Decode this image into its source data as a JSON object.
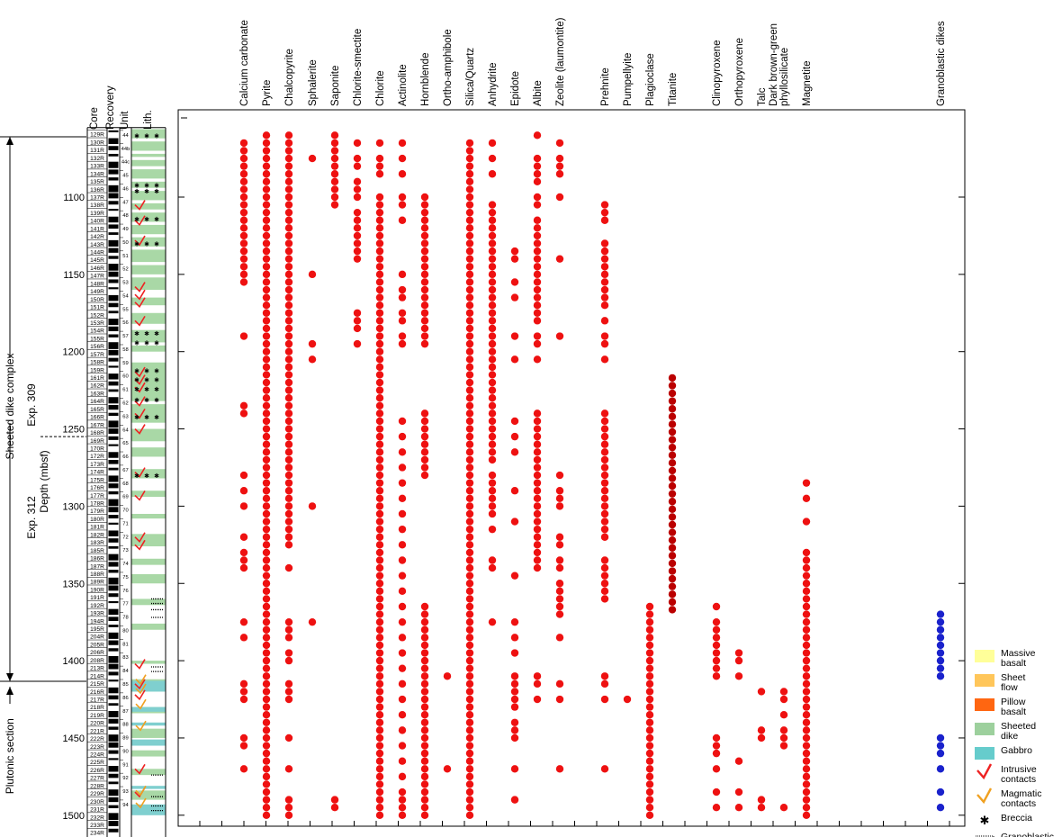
{
  "chart_data": {
    "type": "scatter",
    "ylabel": "Depth (mbsf)",
    "ylim": [
      1055,
      1502
    ],
    "yticks": [
      1100,
      1150,
      1200,
      1250,
      1300,
      1350,
      1400,
      1450,
      1500
    ],
    "column_headers": [
      "Core",
      "Recovery",
      "Unit",
      "Lith."
    ],
    "sections": [
      {
        "label": "Sheeted dike complex",
        "top": 1055,
        "bottom": 1410
      },
      {
        "label": "Plutonic section",
        "top": 1410,
        "bottom": 1502
      }
    ],
    "expeditions": [
      {
        "label": "Exp. 309",
        "top": 1055,
        "bottom": 1255
      },
      {
        "label": "Exp. 312",
        "top": 1255,
        "bottom": 1502
      }
    ],
    "expedition_boundary": 1255,
    "cores": [
      "129R",
      "130R",
      "131R",
      "132R",
      "133R",
      "134R",
      "135R",
      "136R",
      "137R",
      "138R",
      "139R",
      "140R",
      "141R",
      "142R",
      "143R",
      "144R",
      "145R",
      "146R",
      "147R",
      "148R",
      "149R",
      "150R",
      "151R",
      "152R",
      "153R",
      "154R",
      "155R",
      "156R",
      "157R",
      "158R",
      "159R",
      "161R",
      "162R",
      "163R",
      "164R",
      "165R",
      "166R",
      "167R",
      "168R",
      "169R",
      "170R",
      "172R",
      "173R",
      "174R",
      "175R",
      "176R",
      "177R",
      "178R",
      "179R",
      "180R",
      "181R",
      "182R",
      "183R",
      "185R",
      "186R",
      "187R",
      "188R",
      "189R",
      "190R",
      "191R",
      "192R",
      "193R",
      "194R",
      "195R",
      "204R",
      "205R",
      "206R",
      "208R",
      "213R",
      "214R",
      "215R",
      "216R",
      "217R",
      "218R",
      "219R",
      "220R",
      "221R",
      "222R",
      "223R",
      "224R",
      "225R",
      "226R",
      "227R",
      "228R",
      "229R",
      "230R",
      "231R",
      "232R",
      "233R",
      "234R"
    ],
    "units": [
      "44",
      "44b",
      "44c",
      "45",
      "46",
      "47",
      "48",
      "49",
      "50",
      "51",
      "52",
      "53",
      "54",
      "55",
      "56",
      "57",
      "58",
      "59",
      "60",
      "61",
      "62",
      "63",
      "64",
      "65",
      "66",
      "67",
      "68",
      "69",
      "70",
      "71",
      "72",
      "73",
      "74",
      "75",
      "76",
      "77",
      "78",
      "80",
      "81",
      "83",
      "84",
      "85",
      "86",
      "87",
      "88",
      "89",
      "90",
      "91",
      "92",
      "93",
      "94"
    ],
    "minerals": [
      {
        "name": "Calcium carbonate",
        "color": "#ee1111",
        "depths": [
          1065,
          1070,
          1075,
          1080,
          1085,
          1090,
          1095,
          1100,
          1105,
          1110,
          1115,
          1120,
          1125,
          1130,
          1135,
          1140,
          1145,
          1150,
          1155,
          1190,
          1235,
          1240,
          1280,
          1290,
          1300,
          1320,
          1330,
          1335,
          1340,
          1375,
          1385,
          1415,
          1420,
          1425,
          1450,
          1455,
          1470
        ]
      },
      {
        "name": "Pyrite",
        "color": "#ee1111",
        "depths": [
          1060,
          1065,
          1070,
          1075,
          1080,
          1085,
          1090,
          1095,
          1100,
          1105,
          1110,
          1115,
          1120,
          1125,
          1130,
          1135,
          1140,
          1145,
          1150,
          1155,
          1160,
          1165,
          1170,
          1175,
          1180,
          1185,
          1190,
          1195,
          1200,
          1205,
          1210,
          1215,
          1220,
          1225,
          1230,
          1235,
          1240,
          1245,
          1250,
          1255,
          1260,
          1265,
          1270,
          1275,
          1280,
          1285,
          1290,
          1295,
          1300,
          1305,
          1310,
          1315,
          1320,
          1325,
          1330,
          1335,
          1340,
          1345,
          1350,
          1355,
          1360,
          1365,
          1370,
          1375,
          1380,
          1385,
          1390,
          1395,
          1400,
          1405,
          1410,
          1415,
          1420,
          1425,
          1430,
          1435,
          1440,
          1445,
          1450,
          1455,
          1460,
          1465,
          1470,
          1475,
          1480,
          1485,
          1490,
          1495,
          1500
        ]
      },
      {
        "name": "Chalcopyrite",
        "color": "#ee1111",
        "depths": [
          1060,
          1065,
          1070,
          1075,
          1080,
          1085,
          1090,
          1095,
          1100,
          1105,
          1110,
          1115,
          1120,
          1125,
          1130,
          1135,
          1140,
          1145,
          1150,
          1155,
          1160,
          1165,
          1170,
          1175,
          1180,
          1185,
          1190,
          1195,
          1200,
          1205,
          1210,
          1215,
          1220,
          1225,
          1230,
          1235,
          1240,
          1245,
          1250,
          1255,
          1260,
          1265,
          1270,
          1275,
          1280,
          1285,
          1290,
          1295,
          1300,
          1305,
          1310,
          1315,
          1320,
          1325,
          1340,
          1375,
          1380,
          1385,
          1395,
          1400,
          1415,
          1420,
          1425,
          1450,
          1470,
          1490,
          1495,
          1500
        ]
      },
      {
        "name": "Sphalerite",
        "color": "#ee1111",
        "depths": [
          1075,
          1150,
          1195,
          1205,
          1300,
          1375
        ]
      },
      {
        "name": "Saponite",
        "color": "#ee1111",
        "depths": [
          1060,
          1065,
          1070,
          1075,
          1080,
          1085,
          1090,
          1095,
          1100,
          1105,
          1490,
          1495
        ]
      },
      {
        "name": "Chlorite-smectite",
        "color": "#ee1111",
        "depths": [
          1065,
          1075,
          1080,
          1090,
          1095,
          1100,
          1110,
          1115,
          1120,
          1125,
          1130,
          1135,
          1140,
          1175,
          1180,
          1185,
          1195
        ]
      },
      {
        "name": "Chlorite",
        "color": "#ee1111",
        "depths": [
          1065,
          1075,
          1080,
          1085,
          1100,
          1105,
          1110,
          1115,
          1120,
          1125,
          1130,
          1135,
          1140,
          1145,
          1150,
          1155,
          1160,
          1165,
          1170,
          1175,
          1180,
          1185,
          1190,
          1195,
          1200,
          1205,
          1210,
          1215,
          1220,
          1225,
          1230,
          1235,
          1240,
          1245,
          1250,
          1255,
          1260,
          1265,
          1270,
          1275,
          1280,
          1285,
          1290,
          1295,
          1300,
          1305,
          1310,
          1315,
          1320,
          1325,
          1330,
          1335,
          1340,
          1345,
          1350,
          1355,
          1360,
          1365,
          1370,
          1375,
          1380,
          1385,
          1390,
          1395,
          1400,
          1405,
          1410,
          1415,
          1420,
          1425,
          1430,
          1435,
          1440,
          1445,
          1450,
          1455,
          1460,
          1465,
          1470,
          1475,
          1480,
          1485,
          1490,
          1495,
          1500
        ]
      },
      {
        "name": "Actinolite",
        "color": "#ee1111",
        "depths": [
          1065,
          1075,
          1085,
          1100,
          1105,
          1115,
          1150,
          1160,
          1165,
          1175,
          1180,
          1190,
          1195,
          1245,
          1255,
          1265,
          1275,
          1285,
          1295,
          1305,
          1315,
          1325,
          1335,
          1345,
          1355,
          1365,
          1375,
          1385,
          1395,
          1405,
          1415,
          1425,
          1435,
          1445,
          1455,
          1465,
          1475,
          1485,
          1490,
          1495,
          1500
        ]
      },
      {
        "name": "Hornblende",
        "color": "#ee1111",
        "depths": [
          1100,
          1105,
          1110,
          1115,
          1120,
          1125,
          1130,
          1135,
          1140,
          1145,
          1150,
          1155,
          1160,
          1165,
          1170,
          1175,
          1180,
          1185,
          1190,
          1195,
          1240,
          1245,
          1250,
          1255,
          1260,
          1265,
          1270,
          1275,
          1280,
          1365,
          1370,
          1375,
          1380,
          1385,
          1390,
          1395,
          1400,
          1405,
          1410,
          1415,
          1420,
          1425,
          1430,
          1435,
          1440,
          1445,
          1450,
          1455,
          1460,
          1465,
          1470,
          1475,
          1480,
          1485,
          1490,
          1495,
          1500
        ]
      },
      {
        "name": "Ortho-amphibole",
        "color": "#ee1111",
        "depths": [
          1410,
          1470
        ]
      },
      {
        "name": "Silica/Quartz",
        "color": "#ee1111",
        "depths": [
          1065,
          1070,
          1075,
          1080,
          1085,
          1090,
          1095,
          1100,
          1105,
          1110,
          1115,
          1120,
          1125,
          1130,
          1135,
          1140,
          1145,
          1150,
          1155,
          1160,
          1165,
          1170,
          1175,
          1180,
          1185,
          1190,
          1195,
          1200,
          1205,
          1210,
          1215,
          1220,
          1225,
          1230,
          1235,
          1240,
          1245,
          1250,
          1255,
          1260,
          1265,
          1270,
          1275,
          1280,
          1285,
          1290,
          1295,
          1300,
          1305,
          1310,
          1315,
          1320,
          1325,
          1330,
          1335,
          1340,
          1345,
          1350,
          1355,
          1360,
          1365,
          1370,
          1375,
          1380,
          1385,
          1390,
          1395,
          1400,
          1405,
          1410,
          1415,
          1420,
          1425,
          1430,
          1435,
          1440,
          1445,
          1450,
          1455,
          1460,
          1465,
          1470,
          1475,
          1480,
          1485,
          1490,
          1495,
          1500
        ]
      },
      {
        "name": "Anhydrite",
        "color": "#ee1111",
        "depths": [
          1065,
          1075,
          1085,
          1105,
          1110,
          1115,
          1120,
          1125,
          1130,
          1135,
          1140,
          1145,
          1150,
          1155,
          1160,
          1165,
          1170,
          1175,
          1180,
          1185,
          1190,
          1195,
          1200,
          1205,
          1210,
          1215,
          1220,
          1225,
          1230,
          1235,
          1240,
          1245,
          1250,
          1255,
          1260,
          1265,
          1270,
          1280,
          1285,
          1290,
          1295,
          1300,
          1305,
          1315,
          1335,
          1340,
          1375
        ]
      },
      {
        "name": "Epidote",
        "color": "#ee1111",
        "depths": [
          1135,
          1140,
          1155,
          1165,
          1190,
          1205,
          1245,
          1255,
          1265,
          1290,
          1310,
          1345,
          1375,
          1385,
          1395,
          1410,
          1415,
          1420,
          1425,
          1430,
          1440,
          1445,
          1450,
          1470,
          1490
        ]
      },
      {
        "name": "Albite",
        "color": "#ee1111",
        "depths": [
          1060,
          1075,
          1080,
          1085,
          1090,
          1100,
          1105,
          1115,
          1120,
          1125,
          1130,
          1135,
          1140,
          1145,
          1150,
          1155,
          1160,
          1165,
          1170,
          1175,
          1180,
          1190,
          1195,
          1205,
          1240,
          1245,
          1250,
          1255,
          1260,
          1265,
          1270,
          1275,
          1280,
          1285,
          1290,
          1295,
          1300,
          1305,
          1310,
          1315,
          1320,
          1325,
          1330,
          1335,
          1340,
          1410,
          1415,
          1425
        ]
      },
      {
        "name": "Zeolite (laumontite)",
        "color": "#ee1111",
        "depths": [
          1065,
          1075,
          1080,
          1085,
          1100,
          1140,
          1190,
          1280,
          1290,
          1295,
          1300,
          1320,
          1325,
          1335,
          1340,
          1350,
          1355,
          1360,
          1365,
          1370,
          1385,
          1415,
          1425,
          1470
        ]
      },
      {
        "name": "Prehnite",
        "color": "#ee1111",
        "depths": [
          1105,
          1110,
          1115,
          1130,
          1135,
          1140,
          1145,
          1150,
          1155,
          1160,
          1165,
          1170,
          1180,
          1190,
          1195,
          1205,
          1240,
          1245,
          1250,
          1255,
          1260,
          1265,
          1270,
          1275,
          1280,
          1285,
          1290,
          1295,
          1300,
          1305,
          1310,
          1315,
          1320,
          1335,
          1340,
          1345,
          1350,
          1355,
          1360,
          1410,
          1415,
          1425,
          1470
        ]
      },
      {
        "name": "Pumpellyite",
        "color": "#ee1111",
        "depths": [
          1425
        ]
      },
      {
        "name": "Plagioclase",
        "color": "#ee1111",
        "depths": [
          1365,
          1370,
          1375,
          1380,
          1385,
          1390,
          1395,
          1400,
          1405,
          1410,
          1415,
          1420,
          1425,
          1430,
          1435,
          1440,
          1445,
          1450,
          1455,
          1460,
          1465,
          1470,
          1475,
          1480,
          1485,
          1490,
          1495,
          1500
        ]
      },
      {
        "name": "Titanite",
        "color": "#bb0000",
        "depths": [
          1217,
          1222,
          1227,
          1232,
          1237,
          1242,
          1247,
          1252,
          1257,
          1262,
          1267,
          1272,
          1277,
          1282,
          1287,
          1292,
          1297,
          1302,
          1307,
          1312,
          1317,
          1322,
          1327,
          1332,
          1337,
          1342,
          1347,
          1352,
          1357,
          1362,
          1367
        ]
      },
      {
        "name": "Clinopyroxene",
        "color": "#ee1111",
        "depths": [
          1365,
          1375,
          1380,
          1385,
          1390,
          1395,
          1400,
          1405,
          1410,
          1450,
          1455,
          1460,
          1470,
          1485,
          1495
        ]
      },
      {
        "name": "Orthopyroxene",
        "color": "#ee1111",
        "depths": [
          1395,
          1400,
          1410,
          1465,
          1485,
          1495
        ]
      },
      {
        "name": "Talc",
        "color": "#ee1111",
        "depths": [
          1420,
          1445,
          1450,
          1490,
          1495
        ]
      },
      {
        "name": "Dark brown-green phyllosilicate",
        "color": "#ee1111",
        "depths": [
          1420,
          1425,
          1435,
          1445,
          1450,
          1455,
          1495
        ]
      },
      {
        "name": "Magnetite",
        "color": "#ee1111",
        "depths": [
          1285,
          1295,
          1310,
          1330,
          1335,
          1340,
          1345,
          1350,
          1355,
          1360,
          1365,
          1370,
          1375,
          1380,
          1385,
          1390,
          1395,
          1400,
          1405,
          1410,
          1415,
          1420,
          1425,
          1430,
          1435,
          1440,
          1445,
          1450,
          1455,
          1460,
          1465,
          1470,
          1475,
          1480,
          1485,
          1490,
          1495,
          1500
        ]
      },
      {
        "name": "Granoblastic dikes",
        "color": "#1a22cc",
        "depths": [
          1370,
          1375,
          1380,
          1385,
          1390,
          1395,
          1400,
          1405,
          1410,
          1450,
          1455,
          1460,
          1470,
          1485,
          1495
        ]
      }
    ],
    "legend": [
      {
        "label": "Massive basalt",
        "type": "swatch",
        "color": "#ffff99"
      },
      {
        "label": "Sheet flow",
        "type": "swatch",
        "color": "#ffc65a"
      },
      {
        "label": "Pillow basalt",
        "type": "swatch",
        "color": "#ff6611"
      },
      {
        "label": "Sheeted dike",
        "type": "swatch",
        "color": "#9dd09d"
      },
      {
        "label": "Gabbro",
        "type": "swatch",
        "color": "#66cccc"
      },
      {
        "label": "Intrusive contacts",
        "type": "intrusive",
        "color": "#ee2222"
      },
      {
        "label": "Magmatic contacts",
        "type": "magmatic",
        "color": "#f0a020"
      },
      {
        "label": "Breccia",
        "type": "breccia",
        "color": "#000000"
      },
      {
        "label": "Granoblastic texture",
        "type": "granoblastic",
        "color": "#000000"
      }
    ]
  }
}
